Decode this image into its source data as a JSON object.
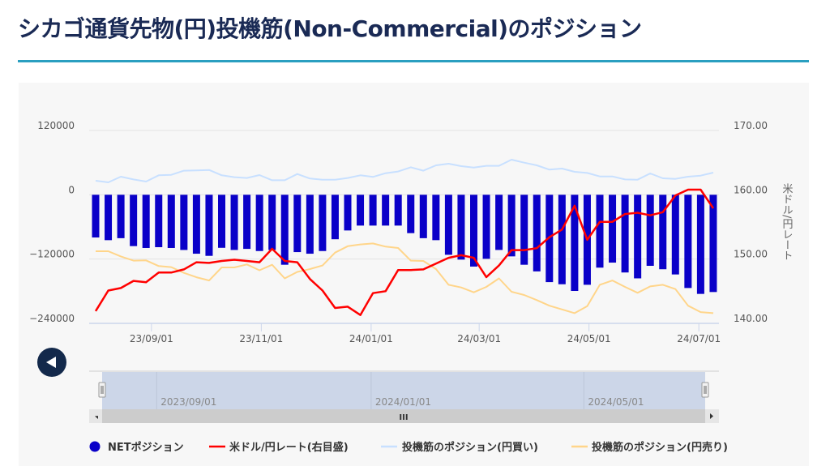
{
  "page": {
    "title": "シカゴ通貨先物(円)投機筋(Non-Commercial)のポジション"
  },
  "controls": {
    "back_button_icon": "left-triangle-icon",
    "scrollbar_grip": "III"
  },
  "colors": {
    "net": "#0a00c8",
    "rate": "#ff0000",
    "long": "#c8e0ff",
    "short": "#ffd58a",
    "accent": "#2a9fc0",
    "title": "#1a2a55"
  },
  "chart_data": {
    "type": "bar+line",
    "x_start": "2023-08-01",
    "x_interval_days": 7,
    "x_ticks": [
      {
        "label": "23/09/01",
        "day": 31
      },
      {
        "label": "23/11/01",
        "day": 92
      },
      {
        "label": "24/01/01",
        "day": 153
      },
      {
        "label": "24/03/01",
        "day": 213
      },
      {
        "label": "24/05/01",
        "day": 274
      },
      {
        "label": "24/07/01",
        "day": 335
      }
    ],
    "navigator_ticks": [
      {
        "label": "2023/09/01",
        "day": 31
      },
      {
        "label": "2024/01/01",
        "day": 153
      },
      {
        "label": "2024/05/01",
        "day": 274
      }
    ],
    "y_left": {
      "ticks": [
        "120000",
        "0",
        "−120000",
        "−240000"
      ],
      "values": [
        120000,
        0,
        -120000,
        -240000
      ],
      "range": [
        -240000,
        120000
      ]
    },
    "y_right": {
      "title": "米ドル/円レート",
      "ticks": [
        "170.00",
        "160.00",
        "150.00",
        "140.00"
      ],
      "values": [
        170,
        160,
        150,
        140
      ],
      "range": [
        140,
        170
      ]
    },
    "legend": [
      "NETポジション",
      "米ドル/円レート(右目盛)",
      "投機筋のポジション(円買い)",
      "投機筋のポジション(円売り)"
    ],
    "series": [
      {
        "name": "NETポジション",
        "axis": "left",
        "type": "bar",
        "values": [
          -79700,
          -84700,
          -81000,
          -95800,
          -99300,
          -97800,
          -99300,
          -103000,
          -110000,
          -114000,
          -99000,
          -103000,
          -101000,
          -105000,
          -103000,
          -130600,
          -107000,
          -110000,
          -105000,
          -83000,
          -66600,
          -57500,
          -57500,
          -57500,
          -57500,
          -71600,
          -81000,
          -84700,
          -112000,
          -121000,
          -134000,
          -119500,
          -103000,
          -115000,
          -130600,
          -143000,
          -163000,
          -167000,
          -179500,
          -168000,
          -136000,
          -126600,
          -145000,
          -156000,
          -132600,
          -139000,
          -148700,
          -174000,
          -185000,
          -181500
        ]
      },
      {
        "name": "米ドル/円レート(右目盛)",
        "axis": "right",
        "type": "line",
        "values": [
          141.9,
          145.1,
          145.5,
          146.6,
          146.4,
          147.9,
          147.9,
          148.4,
          149.5,
          149.4,
          149.7,
          149.9,
          149.7,
          149.5,
          151.6,
          149.7,
          149.5,
          146.9,
          145.1,
          142.4,
          142.6,
          141.3,
          144.7,
          145.0,
          148.3,
          148.3,
          148.4,
          149.3,
          150.2,
          150.6,
          150.2,
          147.2,
          149.0,
          151.4,
          151.4,
          151.7,
          153.4,
          154.6,
          158.3,
          153.0,
          155.8,
          155.8,
          157.0,
          157.2,
          156.8,
          157.3,
          159.9,
          160.8,
          160.8,
          157.9
        ]
      },
      {
        "name": "投機筋のポジション(円買い)",
        "axis": "left",
        "type": "line",
        "values": [
          26200,
          23200,
          33800,
          28700,
          24700,
          36300,
          37300,
          44900,
          45400,
          46400,
          36300,
          32800,
          31300,
          36800,
          27200,
          27200,
          38800,
          30300,
          28200,
          28200,
          31300,
          36300,
          33300,
          40300,
          43400,
          51400,
          44900,
          55000,
          58000,
          53400,
          50900,
          54000,
          54000,
          65500,
          60000,
          55000,
          46900,
          48900,
          42900,
          40800,
          34300,
          34300,
          28700,
          28200,
          39800,
          30800,
          29700,
          33800,
          35800,
          41300
        ]
      },
      {
        "name": "投機筋のポジション(円売り)",
        "axis": "left",
        "type": "line",
        "values": [
          -105400,
          -105400,
          -115000,
          -123000,
          -122500,
          -133000,
          -135000,
          -145700,
          -154000,
          -160000,
          -135600,
          -135600,
          -130000,
          -141000,
          -130600,
          -156000,
          -144000,
          -138700,
          -132000,
          -108000,
          -96000,
          -92600,
          -90800,
          -96800,
          -99300,
          -123000,
          -123500,
          -138700,
          -168000,
          -173000,
          -182000,
          -172000,
          -156000,
          -181000,
          -187000,
          -196600,
          -207000,
          -214000,
          -221000,
          -208000,
          -168000,
          -160000,
          -172000,
          -183000,
          -171000,
          -168000,
          -176000,
          -207000,
          -219000,
          -221000
        ]
      }
    ]
  }
}
